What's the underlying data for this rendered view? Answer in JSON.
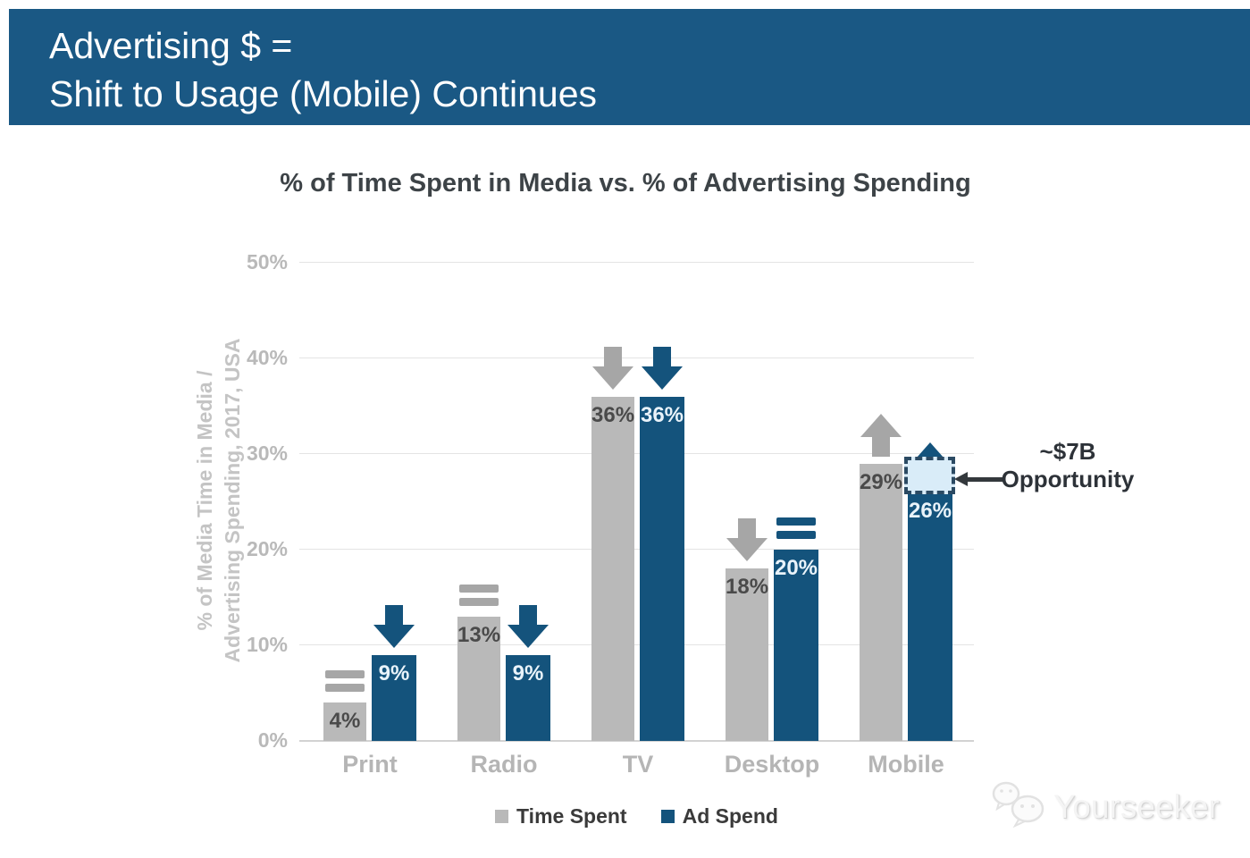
{
  "header": {
    "title_line1": "Advertising $ =",
    "title_line2": "Shift to Usage (Mobile) Continues",
    "bg_color": "#1a5884",
    "text_color": "#ffffff"
  },
  "chart_data": {
    "type": "bar",
    "title": "% of Time Spent in Media vs. % of Advertising Spending",
    "ylabel": "% of Media Time in Media / Advertising Spending, 2017, USA",
    "ylabel_line1": "% of Media Time in Media /",
    "ylabel_line2": "Advertising Spending, 2017, USA",
    "categories": [
      "Print",
      "Radio",
      "TV",
      "Desktop",
      "Mobile"
    ],
    "series": [
      {
        "name": "Time Spent",
        "color": "#b9b9b9",
        "trend_color": "#a6a6a6",
        "values": [
          4,
          13,
          36,
          18,
          29
        ],
        "trends": [
          "equal",
          "equal",
          "down",
          "down",
          "up"
        ]
      },
      {
        "name": "Ad Spend",
        "color": "#14537c",
        "trend_color": "#14537c",
        "values": [
          9,
          9,
          36,
          20,
          26
        ],
        "trends": [
          "down",
          "down",
          "down",
          "equal",
          "up"
        ]
      }
    ],
    "value_suffix": "%",
    "ylim": [
      0,
      50
    ],
    "yticks": [
      "0%",
      "10%",
      "20%",
      "30%",
      "40%",
      "50%"
    ],
    "grid": true,
    "legend_position": "bottom",
    "annotation": {
      "line1": "~$7B",
      "line2": "Opportunity",
      "applies_to": "Mobile Ad Spend gap",
      "box_fill": "#d9ecf8",
      "box_border": "#2b4a63"
    }
  },
  "watermark": {
    "label": "Yourseeker"
  }
}
